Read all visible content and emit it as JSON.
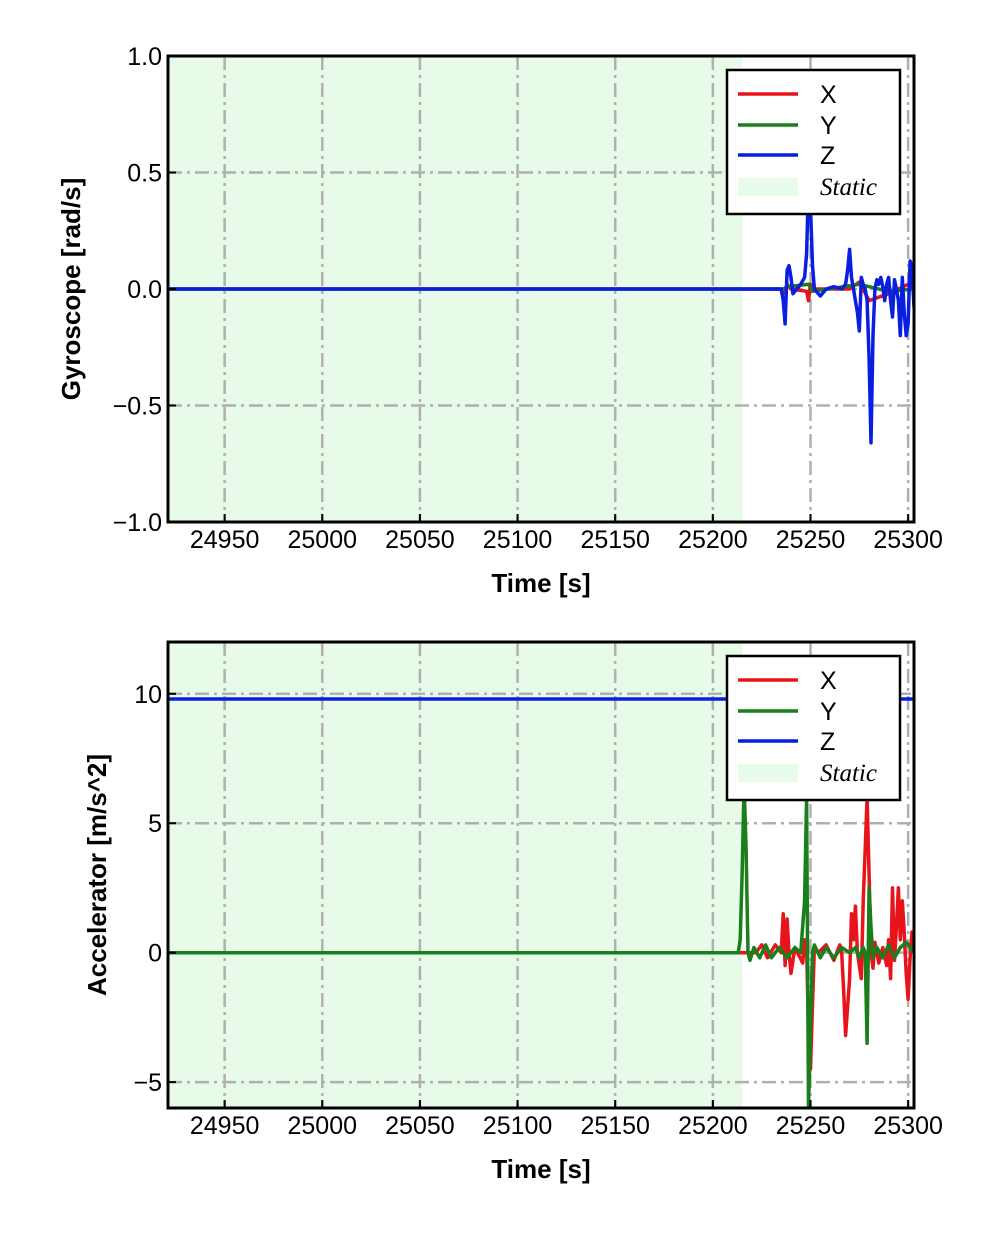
{
  "chart_data": [
    {
      "type": "line",
      "ylabel": "Gyroscope [rad/s]",
      "xlabel": "Time [s]",
      "xlim": [
        24921,
        25303
      ],
      "ylim": [
        -1.0,
        1.0
      ],
      "xticks": [
        24950,
        25000,
        25050,
        25100,
        25150,
        25200,
        25250,
        25300
      ],
      "xtick_labels": [
        "24950",
        "25000",
        "25050",
        "25100",
        "25150",
        "25200",
        "25250",
        "25300"
      ],
      "yticks": [
        -1.0,
        -0.5,
        0.0,
        0.5,
        1.0
      ],
      "ytick_labels": [
        "−1.0",
        "−0.5",
        "0.0",
        "0.5",
        "1.0"
      ],
      "grid": true,
      "legend_position": "top-right",
      "static_region": {
        "label": "Static",
        "x": [
          24921,
          25215
        ],
        "color": "#e8fbe8"
      },
      "series": [
        {
          "name": "X",
          "color": "#e8141c",
          "x": [
            24921,
            25236,
            25237,
            25238,
            25240,
            25248,
            25249,
            25250,
            25252,
            25270,
            25275,
            25280,
            25290,
            25300,
            25303
          ],
          "y": [
            0,
            0,
            -0.02,
            0.02,
            0,
            -0.01,
            -0.05,
            0.02,
            0,
            0,
            0.03,
            -0.05,
            -0.02,
            0.02,
            0
          ]
        },
        {
          "name": "Y",
          "color": "#1a7f1a",
          "x": [
            24921,
            25236,
            25238,
            25249,
            25251,
            25275,
            25290,
            25303
          ],
          "y": [
            0,
            0,
            0.01,
            0.02,
            -0.01,
            0.02,
            -0.01,
            0
          ]
        },
        {
          "name": "Z",
          "color": "#0a1ee0",
          "x": [
            24921,
            25235,
            25236,
            25237,
            25238,
            25239,
            25240,
            25241,
            25243,
            25245,
            25247,
            25248,
            25249,
            25250,
            25251,
            25252,
            25255,
            25258,
            25262,
            25266,
            25268,
            25269,
            25270,
            25271,
            25272,
            25273,
            25274,
            25275,
            25276,
            25277,
            25278,
            25279,
            25280,
            25281,
            25282,
            25283,
            25284,
            25285,
            25286,
            25287,
            25288,
            25289,
            25290,
            25291,
            25292,
            25293,
            25294,
            25295,
            25296,
            25297,
            25298,
            25299,
            25300,
            25301,
            25302,
            25303
          ],
          "y": [
            0,
            0,
            -0.05,
            -0.15,
            0.08,
            0.1,
            0.05,
            -0.02,
            0,
            0.02,
            0.05,
            0.15,
            0.45,
            0.35,
            0.1,
            0,
            -0.03,
            0,
            0.01,
            0,
            0.02,
            0.08,
            0.17,
            0.05,
            0,
            -0.05,
            -0.1,
            -0.18,
            0.05,
            0.02,
            0,
            -0.05,
            -0.3,
            -0.66,
            -0.2,
            0,
            0.04,
            0.02,
            0.05,
            0.01,
            -0.05,
            0.02,
            0.05,
            -0.05,
            -0.12,
            0.04,
            0,
            -0.05,
            -0.2,
            0.05,
            -0.1,
            -0.2,
            -0.15,
            0.12,
            0.1,
            -0.08
          ]
        }
      ]
    },
    {
      "type": "line",
      "ylabel": "Accelerator [m/s^2]",
      "xlabel": "Time [s]",
      "xlim": [
        24921,
        25303
      ],
      "ylim": [
        -6,
        12
      ],
      "xticks": [
        24950,
        25000,
        25050,
        25100,
        25150,
        25200,
        25250,
        25300
      ],
      "xtick_labels": [
        "24950",
        "25000",
        "25050",
        "25100",
        "25150",
        "25200",
        "25250",
        "25300"
      ],
      "yticks": [
        -5,
        0,
        5,
        10
      ],
      "ytick_labels": [
        "−5",
        "0",
        "5",
        "10"
      ],
      "grid": true,
      "legend_position": "top-right",
      "static_region": {
        "label": "Static",
        "x": [
          24921,
          25215
        ],
        "color": "#e8fbe8"
      },
      "series": [
        {
          "name": "X",
          "color": "#e8141c",
          "x": [
            24921,
            25222,
            25225,
            25228,
            25232,
            25235,
            25236,
            25237,
            25238,
            25239,
            25240,
            25242,
            25246,
            25247,
            25248,
            25249,
            25250,
            25251,
            25252,
            25254,
            25258,
            25262,
            25265,
            25266,
            25267,
            25268,
            25270,
            25271,
            25272,
            25273,
            25274,
            25275,
            25276,
            25277,
            25278,
            25279,
            25280,
            25281,
            25282,
            25283,
            25285,
            25287,
            25289,
            25290,
            25291,
            25292,
            25293,
            25294,
            25295,
            25296,
            25297,
            25298,
            25299,
            25300,
            25301,
            25302,
            25303
          ],
          "y": [
            0,
            0,
            0.3,
            -0.2,
            0.3,
            0,
            1.5,
            -0.5,
            1.3,
            0,
            -0.8,
            0.2,
            -0.4,
            0.5,
            0.2,
            -3,
            -4.5,
            -2,
            0.2,
            0,
            0.3,
            -0.3,
            0.3,
            0,
            -1.5,
            -3.2,
            -1,
            1.5,
            0.5,
            1.8,
            0,
            -0.5,
            -1,
            2,
            4,
            6,
            3,
            0,
            -0.6,
            0.4,
            -0.4,
            0.2,
            -0.5,
            0.5,
            -1,
            2.5,
            -0.3,
            1,
            2.5,
            0.5,
            2,
            0.8,
            -0.8,
            -1.8,
            -0.2,
            0.8,
            0
          ]
        },
        {
          "name": "Y",
          "color": "#1a7f1a",
          "x": [
            24921,
            25213,
            25214,
            25215,
            25216,
            25217,
            25218,
            25219,
            25221,
            25224,
            25227,
            25230,
            25234,
            25238,
            25242,
            25245,
            25247,
            25248,
            25249,
            25250,
            25251,
            25252,
            25255,
            25258,
            25262,
            25266,
            25270,
            25273,
            25275,
            25277,
            25278,
            25279,
            25280,
            25281,
            25282,
            25284,
            25287,
            25290,
            25293,
            25296,
            25299,
            25303
          ],
          "y": [
            0,
            0,
            0.5,
            3,
            6.5,
            4,
            0,
            -0.3,
            0.2,
            -0.2,
            0.3,
            -0.2,
            0.2,
            -0.2,
            0.2,
            0,
            2,
            6,
            -6,
            -3,
            0,
            0.3,
            -0.2,
            0.2,
            -0.2,
            0.2,
            0,
            0.2,
            -0.2,
            0.2,
            0,
            -3.5,
            2.5,
            1,
            -0.2,
            0.2,
            -0.2,
            0.3,
            -0.2,
            0.2,
            0.4,
            0
          ]
        },
        {
          "name": "Z",
          "color": "#0a1ee0",
          "x": [
            24921,
            25303
          ],
          "y": [
            9.8,
            9.8
          ]
        }
      ]
    }
  ]
}
